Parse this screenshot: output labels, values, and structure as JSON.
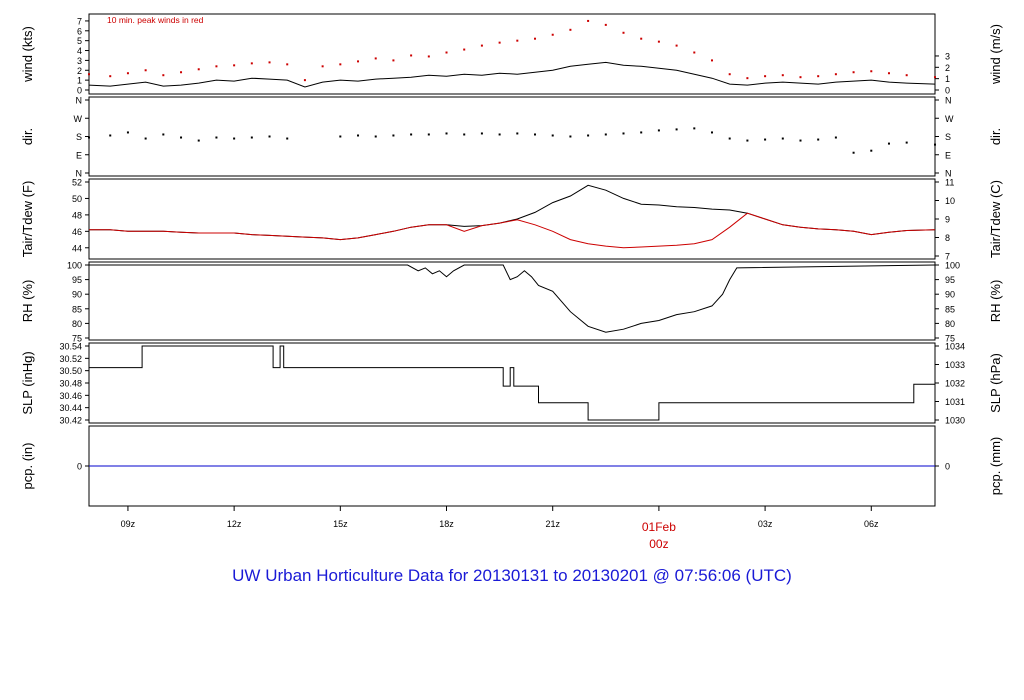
{
  "title": "UW Urban Horticulture Data for 20130131  to  20130201 @ 07:56:06  (UTC)",
  "colors": {
    "frame": "#000000",
    "highlight": "#cc0000",
    "precip": "#0000cc",
    "title": "#1a1ad6"
  },
  "chart_data": [
    {
      "type": "line",
      "panel": "wind",
      "ylabel": "wind (kts)",
      "ylabel_right": "wind (m/s)",
      "annotation": "10 min. peak winds in red",
      "ylim": [
        0,
        7.5
      ],
      "yticks": [
        "0",
        "1",
        "2",
        "3",
        "4",
        "5",
        "6",
        "7"
      ],
      "yticks_right": [
        "0",
        "1",
        "2",
        "3"
      ],
      "x": [
        7.9,
        8.5,
        9,
        9.5,
        10,
        10.5,
        11,
        11.5,
        12,
        12.5,
        13,
        13.5,
        14,
        14.5,
        15,
        15.5,
        16,
        16.5,
        17,
        17.5,
        18,
        18.5,
        19,
        19.5,
        20,
        20.5,
        21,
        21.5,
        22,
        22.5,
        23,
        23.5,
        24,
        24.5,
        25,
        25.5,
        26,
        26.5,
        27,
        27.5,
        28,
        28.5,
        29,
        29.5,
        30,
        30.5,
        31,
        31.8
      ],
      "series": [
        {
          "values": [
            0.5,
            0.4,
            0.6,
            0.8,
            0.4,
            0.5,
            0.7,
            1.0,
            0.9,
            1.2,
            1.1,
            1.0,
            0.3,
            0.8,
            1.0,
            0.9,
            1.1,
            1.2,
            1.3,
            1.5,
            1.4,
            1.6,
            1.5,
            1.7,
            1.6,
            1.8,
            2.0,
            2.4,
            2.6,
            2.8,
            2.5,
            2.4,
            2.2,
            2.0,
            1.6,
            1.2,
            0.6,
            0.5,
            0.7,
            0.8,
            0.7,
            0.6,
            0.8,
            0.9,
            1.0,
            0.8,
            0.7,
            0.6
          ]
        },
        {
          "name": "10 min. peak",
          "values": [
            1.6,
            1.4,
            1.7,
            2.0,
            1.5,
            1.8,
            2.1,
            2.4,
            2.5,
            2.7,
            2.8,
            2.6,
            1.0,
            2.4,
            2.6,
            2.9,
            3.2,
            3.0,
            3.5,
            3.4,
            3.8,
            4.1,
            4.5,
            4.8,
            5.0,
            5.2,
            5.6,
            6.1,
            7.0,
            6.6,
            5.8,
            5.2,
            4.9,
            4.5,
            3.8,
            3.0,
            1.6,
            1.2,
            1.4,
            1.5,
            1.3,
            1.4,
            1.6,
            1.8,
            1.9,
            1.7,
            1.5,
            1.3
          ]
        }
      ]
    },
    {
      "type": "scatter",
      "panel": "direction",
      "ylabel": "dir.",
      "ylabel_right": "dir.",
      "ylim": [
        0,
        360
      ],
      "yticks": [
        "N",
        "E",
        "S",
        "W",
        "N"
      ],
      "yticks_right": [
        "N",
        "E",
        "S",
        "W",
        "N"
      ],
      "x": [
        7.9,
        8.5,
        9,
        9.5,
        10,
        10.5,
        11,
        11.5,
        12,
        12.5,
        13,
        13.5,
        15,
        15.5,
        16,
        16.5,
        17,
        17.5,
        18,
        18.5,
        19,
        19.5,
        20,
        20.5,
        21,
        21.5,
        22,
        22.5,
        23,
        23.5,
        24,
        24.5,
        25,
        25.5,
        26,
        26.5,
        27,
        27.5,
        28,
        28.5,
        29,
        29.5,
        30,
        30.5,
        31,
        31.8
      ],
      "series": [
        {
          "values": [
            175,
            185,
            200,
            170,
            190,
            175,
            160,
            175,
            170,
            175,
            180,
            170,
            180,
            185,
            180,
            185,
            190,
            190,
            195,
            190,
            195,
            190,
            195,
            190,
            185,
            180,
            185,
            190,
            195,
            200,
            210,
            215,
            220,
            200,
            170,
            160,
            165,
            170,
            160,
            165,
            175,
            100,
            110,
            145,
            150,
            140
          ]
        }
      ]
    },
    {
      "type": "line",
      "panel": "temperature",
      "ylabel": "Tair/Tdew (F)",
      "ylabel_right": "Tair/Tdew (C)",
      "ylim": [
        43,
        52
      ],
      "yticks": [
        "44",
        "46",
        "48",
        "50",
        "52"
      ],
      "yticks_right": [
        "7",
        "8",
        "9",
        "10",
        "11"
      ],
      "x": [
        7.9,
        8.5,
        9,
        9.5,
        10,
        10.5,
        11,
        11.5,
        12,
        12.5,
        13,
        13.5,
        14,
        14.5,
        15,
        15.5,
        16,
        16.5,
        17,
        17.5,
        18,
        18.5,
        19,
        19.5,
        20,
        20.5,
        21,
        21.5,
        22,
        22.5,
        23,
        23.5,
        24,
        24.5,
        25,
        25.5,
        26,
        26.5,
        27,
        27.5,
        28,
        28.5,
        29,
        29.5,
        30,
        30.5,
        31,
        31.8
      ],
      "series": [
        {
          "name": "Tair",
          "values": [
            46.2,
            46.2,
            46.0,
            46.0,
            46.0,
            45.9,
            45.8,
            45.8,
            45.8,
            45.6,
            45.5,
            45.4,
            45.3,
            45.2,
            45.0,
            45.2,
            45.6,
            46.0,
            46.5,
            46.8,
            46.8,
            46.6,
            46.7,
            47.0,
            47.5,
            48.3,
            49.5,
            50.3,
            51.6,
            51.0,
            50.0,
            49.3,
            49.2,
            49.0,
            48.9,
            48.7,
            48.6,
            48.2,
            47.5,
            46.8,
            46.5,
            46.3,
            46.2,
            46.0,
            45.6,
            45.9,
            46.1,
            46.2
          ]
        },
        {
          "name": "Tdew",
          "values": [
            46.2,
            46.2,
            46.0,
            46.0,
            46.0,
            45.9,
            45.8,
            45.8,
            45.8,
            45.6,
            45.5,
            45.4,
            45.3,
            45.2,
            45.0,
            45.2,
            45.6,
            46.0,
            46.5,
            46.8,
            46.8,
            46.0,
            46.7,
            47.0,
            47.4,
            46.8,
            46.0,
            45.0,
            44.5,
            44.2,
            44.0,
            44.1,
            44.2,
            44.3,
            44.5,
            45.0,
            46.5,
            48.2,
            47.5,
            46.8,
            46.5,
            46.3,
            46.2,
            46.0,
            45.6,
            45.9,
            46.1,
            46.2
          ]
        }
      ]
    },
    {
      "type": "line",
      "panel": "humidity",
      "ylabel": "RH (%)",
      "ylabel_right": "RH (%)",
      "ylim": [
        75,
        100
      ],
      "yticks": [
        "75",
        "80",
        "85",
        "90",
        "95",
        "100"
      ],
      "yticks_right": [
        "75",
        "80",
        "85",
        "90",
        "95",
        "100"
      ],
      "x": [
        7.9,
        16.9,
        17.2,
        17.4,
        17.6,
        17.8,
        18.0,
        18.2,
        18.5,
        19.6,
        19.8,
        20.0,
        20.2,
        20.4,
        20.6,
        21.0,
        21.5,
        22.0,
        22.5,
        23.0,
        23.5,
        24.0,
        24.5,
        25.0,
        25.5,
        25.8,
        26.0,
        26.2,
        31.8
      ],
      "series": [
        {
          "values": [
            100,
            100,
            98,
            99,
            97,
            98,
            96,
            98,
            100,
            100,
            95,
            96,
            98,
            96,
            93,
            91,
            84,
            79,
            77,
            78,
            80,
            81,
            83,
            84,
            86,
            90,
            95,
            99,
            100
          ]
        }
      ]
    },
    {
      "type": "line",
      "panel": "pressure",
      "ylabel": "SLP (inHg)",
      "ylabel_right": "SLP (hPa)",
      "ylim": [
        30.42,
        30.54
      ],
      "yticks": [
        "30.42",
        "30.44",
        "30.46",
        "30.48",
        "30.50",
        "30.52",
        "30.54"
      ],
      "yticks_right": [
        "1030",
        "1031",
        "1032",
        "1033",
        "1034"
      ],
      "x": [
        7.9,
        9.4,
        9.4,
        13.1,
        13.1,
        13.3,
        13.3,
        13.4,
        13.4,
        13.5,
        13.5,
        19.6,
        19.6,
        19.8,
        19.8,
        19.9,
        19.9,
        20.4,
        20.4,
        20.6,
        20.6,
        22.0,
        22.0,
        24.0,
        24.0,
        31.2,
        31.2,
        31.8
      ],
      "series": [
        {
          "values": [
            30.505,
            30.505,
            30.54,
            30.54,
            30.505,
            30.505,
            30.54,
            30.54,
            30.505,
            30.505,
            30.505,
            30.505,
            30.475,
            30.475,
            30.505,
            30.505,
            30.475,
            30.475,
            30.475,
            30.475,
            30.448,
            30.448,
            30.42,
            30.42,
            30.448,
            30.448,
            30.478,
            30.478
          ]
        }
      ]
    },
    {
      "type": "line",
      "panel": "precipitation",
      "ylabel": "pcp. (in)",
      "ylabel_right": "pcp. (mm)",
      "ylim": [
        -1,
        1
      ],
      "yticks": [
        "0"
      ],
      "yticks_right": [
        "0"
      ],
      "x": [
        7.9,
        31.8
      ],
      "series": [
        {
          "values": [
            0,
            0
          ]
        }
      ]
    }
  ],
  "x_axis": {
    "ticks": [
      {
        "label": "09z",
        "value": 9
      },
      {
        "label": "12z",
        "value": 12
      },
      {
        "label": "15z",
        "value": 15
      },
      {
        "label": "18z",
        "value": 18
      },
      {
        "label": "21z",
        "value": 21
      },
      {
        "label": "01Feb",
        "sub": "00z",
        "value": 24,
        "highlight": true
      },
      {
        "label": "03z",
        "value": 27
      },
      {
        "label": "06z",
        "value": 30
      }
    ],
    "xlim": [
      7.9,
      31.8
    ]
  }
}
